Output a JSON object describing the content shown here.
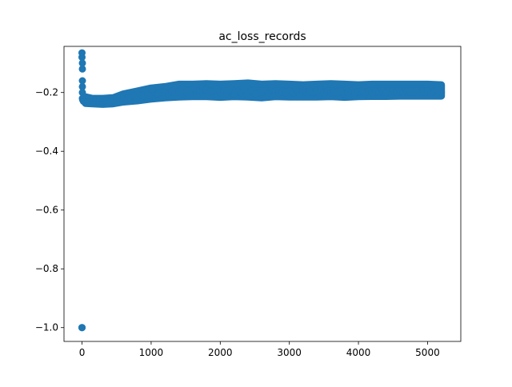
{
  "chart_data": {
    "type": "scatter",
    "title": "ac_loss_records",
    "xlabel": "",
    "ylabel": "",
    "xlim": [
      -261,
      5481
    ],
    "ylim": [
      -1.047,
      -0.043
    ],
    "xticks": [
      0,
      1000,
      2000,
      3000,
      4000,
      5000
    ],
    "yticks": [
      -1.0,
      -0.8,
      -0.6,
      -0.4,
      -0.2
    ],
    "xtick_labels": [
      "0",
      "1000",
      "2000",
      "3000",
      "4000",
      "5000"
    ],
    "ytick_labels": [
      "−1.0",
      "−0.8",
      "−0.6",
      "−0.4",
      "−0.2"
    ],
    "grid": false,
    "legend": "none",
    "marker_color": "#1f77b4",
    "series": [
      {
        "x": [
          0,
          0,
          0,
          0,
          0,
          5,
          5,
          5,
          5,
          5,
          5,
          10,
          20,
          40,
          60,
          80,
          100,
          150,
          200,
          250,
          300,
          350,
          400,
          450,
          500,
          550,
          600,
          650,
          700,
          750,
          800,
          850,
          900,
          950,
          1000,
          1050,
          1100,
          1150,
          1200,
          1250,
          1300,
          1350,
          1400,
          1450,
          1500,
          1550,
          1600,
          1650,
          1700,
          1750,
          1800,
          1850,
          1900,
          1950,
          2000,
          2050,
          2100,
          2150,
          2200,
          2250,
          2300,
          2350,
          2400,
          2450,
          2500,
          2550,
          2600,
          2650,
          2700,
          2750,
          2800,
          2850,
          2900,
          2950,
          3000,
          3050,
          3100,
          3150,
          3200,
          3250,
          3300,
          3350,
          3400,
          3450,
          3500,
          3550,
          3600,
          3650,
          3700,
          3750,
          3800,
          3850,
          3900,
          3950,
          4000,
          4050,
          4100,
          4150,
          4200,
          4250,
          4300,
          4350,
          4400,
          4450,
          4500,
          4550,
          4600,
          4650,
          4700,
          4750,
          4800,
          4850,
          4900,
          4950,
          5000,
          5050,
          5100,
          5150,
          5200
        ],
        "y": [
          -1.0,
          -1.0,
          -1.0,
          -0.065,
          -0.08,
          -0.1,
          -0.12,
          -0.16,
          -0.18,
          -0.2,
          -0.22,
          -0.225,
          -0.23,
          -0.232,
          -0.235,
          -0.233,
          -0.234,
          -0.232,
          -0.228,
          -0.23,
          -0.232,
          -0.229,
          -0.232,
          -0.226,
          -0.222,
          -0.218,
          -0.215,
          -0.22,
          -0.218,
          -0.21,
          -0.215,
          -0.208,
          -0.212,
          -0.205,
          -0.21,
          -0.2,
          -0.205,
          -0.198,
          -0.2,
          -0.205,
          -0.195,
          -0.2,
          -0.195,
          -0.19,
          -0.2,
          -0.195,
          -0.19,
          -0.2,
          -0.195,
          -0.185,
          -0.19,
          -0.198,
          -0.195,
          -0.19,
          -0.2,
          -0.195,
          -0.2,
          -0.19,
          -0.205,
          -0.195,
          -0.2,
          -0.19,
          -0.2,
          -0.195,
          -0.205,
          -0.2,
          -0.198,
          -0.195,
          -0.2,
          -0.19,
          -0.195,
          -0.2,
          -0.195,
          -0.2,
          -0.195,
          -0.2,
          -0.19,
          -0.205,
          -0.195,
          -0.2,
          -0.195,
          -0.2,
          -0.195,
          -0.19,
          -0.2,
          -0.195,
          -0.2,
          -0.198,
          -0.2,
          -0.195,
          -0.205,
          -0.2,
          -0.195,
          -0.2,
          -0.198,
          -0.195,
          -0.2,
          -0.195,
          -0.2,
          -0.198,
          -0.2,
          -0.195,
          -0.2,
          -0.198,
          -0.195,
          -0.2,
          -0.198,
          -0.2,
          -0.195,
          -0.2,
          -0.198,
          -0.195,
          -0.2,
          -0.198,
          -0.195,
          -0.2,
          -0.195,
          -0.19,
          -0.2
        ],
        "band": {
          "x": [
            50,
            150,
            300,
            450,
            600,
            800,
            1000,
            1200,
            1400,
            1600,
            1800,
            2000,
            2200,
            2400,
            2600,
            2800,
            3000,
            3200,
            3400,
            3600,
            3800,
            4000,
            4200,
            4400,
            4600,
            4800,
            5000,
            5200
          ],
          "lower": [
            -0.237,
            -0.238,
            -0.24,
            -0.238,
            -0.232,
            -0.228,
            -0.222,
            -0.218,
            -0.215,
            -0.214,
            -0.214,
            -0.216,
            -0.214,
            -0.215,
            -0.218,
            -0.214,
            -0.215,
            -0.215,
            -0.215,
            -0.214,
            -0.216,
            -0.214,
            -0.213,
            -0.213,
            -0.212,
            -0.212,
            -0.212,
            -0.212
          ],
          "upper": [
            -0.215,
            -0.22,
            -0.22,
            -0.218,
            -0.205,
            -0.195,
            -0.185,
            -0.18,
            -0.172,
            -0.172,
            -0.17,
            -0.172,
            -0.17,
            -0.168,
            -0.172,
            -0.17,
            -0.172,
            -0.174,
            -0.172,
            -0.17,
            -0.172,
            -0.174,
            -0.172,
            -0.172,
            -0.172,
            -0.172,
            -0.172,
            -0.174
          ]
        }
      }
    ]
  }
}
